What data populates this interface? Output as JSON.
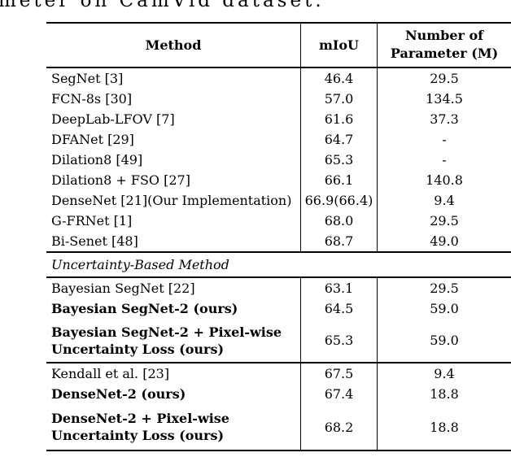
{
  "caption": {
    "fragment": "meter on CamVid dataset."
  },
  "table": {
    "header": {
      "method": "Method",
      "miou": "mIoU",
      "params_line1": "Number of",
      "params_line2": "Parameter (M)"
    },
    "sections": {
      "main": {
        "rows": [
          {
            "method": "SegNet [3]",
            "miou": "46.4",
            "params": "29.5"
          },
          {
            "method": "FCN-8s [30]",
            "miou": "57.0",
            "params": "134.5"
          },
          {
            "method": "DeepLab-LFOV [7]",
            "miou": "61.6",
            "params": "37.3"
          },
          {
            "method": "DFANet [29]",
            "miou": "64.7",
            "params": "-"
          },
          {
            "method": "Dilation8 [49]",
            "miou": "65.3",
            "params": "-"
          },
          {
            "method": "Dilation8 + FSO [27]",
            "miou": "66.1",
            "params": "140.8"
          },
          {
            "method": "DenseNet [21](Our Implementation)",
            "miou": "66.9(66.4)",
            "params": "9.4"
          },
          {
            "method": "G-FRNet [1]",
            "miou": "68.0",
            "params": "29.5"
          },
          {
            "method": "Bi-Senet [48]",
            "miou": "68.7",
            "params": "49.0"
          }
        ]
      },
      "label": "Uncertainty-Based Method",
      "bayesian": {
        "rows": [
          {
            "method": "Bayesian SegNet [22]",
            "miou": "63.1",
            "params": "29.5"
          },
          {
            "method": "Bayesian SegNet-2 (ours)",
            "miou": "64.5",
            "params": "59.0"
          },
          {
            "method_line1": "Bayesian SegNet-2 + Pixel-wise",
            "method_line2": "Uncertainty Loss (ours)",
            "miou": "65.3",
            "params": "59.0"
          }
        ]
      },
      "kendall": {
        "rows": [
          {
            "method": "Kendall et al. [23]",
            "miou": "67.5",
            "params": "9.4"
          },
          {
            "method": "DenseNet-2 (ours)",
            "miou": "67.4",
            "params": "18.8"
          },
          {
            "method_line1": "DenseNet-2 + Pixel-wise",
            "method_line2": "Uncertainty Loss (ours)",
            "miou": "68.2",
            "params": "18.8"
          }
        ]
      }
    }
  }
}
